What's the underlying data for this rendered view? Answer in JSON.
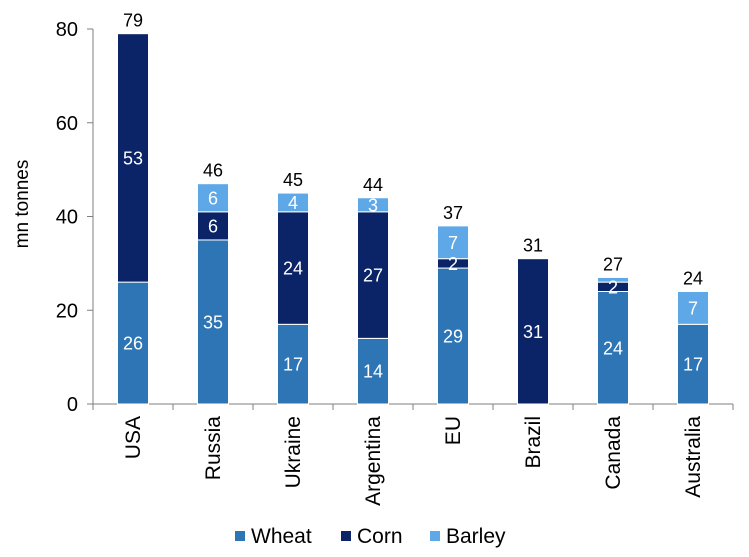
{
  "chart_data": {
    "type": "bar",
    "stacked": true,
    "ylabel": "mn tonnes",
    "xlabel": "",
    "ylim": [
      0,
      80
    ],
    "yticks": [
      0,
      20,
      40,
      60,
      80
    ],
    "categories": [
      "USA",
      "Russia",
      "Ukraine",
      "Argentina",
      "EU",
      "Brazil",
      "Canada",
      "Australia"
    ],
    "series": [
      {
        "name": "Wheat",
        "color": "#2E75B6",
        "values": [
          26,
          35,
          17,
          14,
          29,
          0,
          24,
          17
        ]
      },
      {
        "name": "Corn",
        "color": "#0B2467",
        "values": [
          53,
          6,
          24,
          27,
          2,
          31,
          2,
          0
        ]
      },
      {
        "name": "Barley",
        "color": "#5FA8E8",
        "values": [
          0,
          6,
          4,
          3,
          7,
          0,
          1,
          7
        ]
      }
    ],
    "segment_labels": [
      [
        "26",
        "35",
        "17",
        "14",
        "29",
        "",
        "24",
        "17"
      ],
      [
        "53",
        "6",
        "24",
        "27",
        "2",
        "31",
        "2",
        ""
      ],
      [
        "",
        "6",
        "4",
        "3",
        "7",
        "",
        "",
        "7"
      ]
    ],
    "totals": [
      "79",
      "46",
      "45",
      "44",
      "37",
      "31",
      "27",
      "24"
    ],
    "legend_position": "bottom",
    "grid": false
  }
}
